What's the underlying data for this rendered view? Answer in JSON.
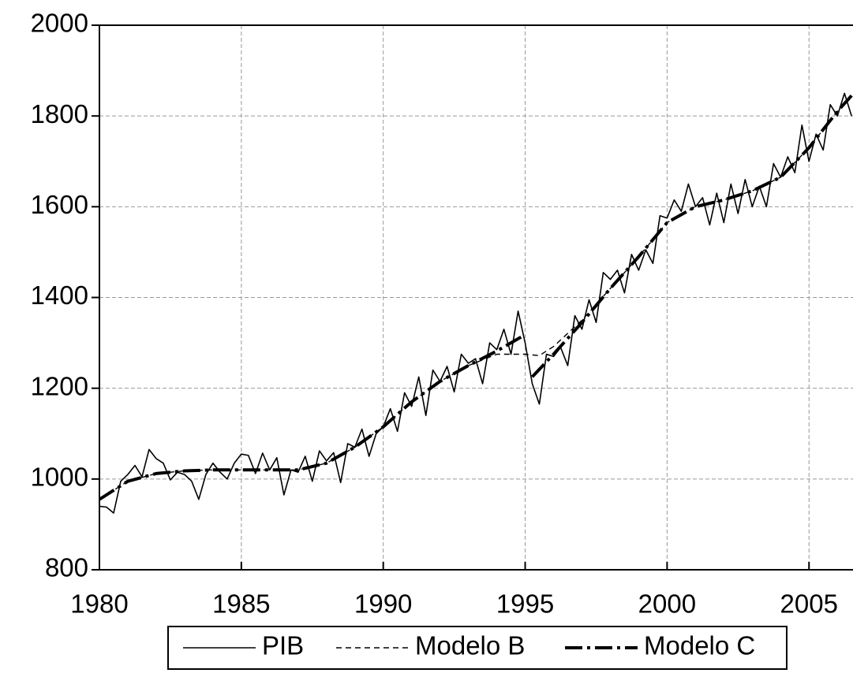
{
  "chart_data": {
    "type": "line",
    "xlim": [
      1980,
      2006.55
    ],
    "xticks": [
      1980,
      1985,
      1990,
      1995,
      2000,
      2005
    ],
    "ylim": [
      800,
      2000
    ],
    "yticks": [
      800,
      1000,
      1200,
      1400,
      1600,
      1800,
      2000
    ],
    "grid": true,
    "legend": "bottom",
    "series": [
      {
        "name": "PIB",
        "color": "#000000",
        "width": 1.6,
        "dash": "none",
        "x": [
          1980,
          1980.25,
          1980.5,
          1980.75,
          1981,
          1981.25,
          1981.5,
          1981.75,
          1982,
          1982.25,
          1982.5,
          1982.75,
          1983,
          1983.25,
          1983.5,
          1983.75,
          1984,
          1984.25,
          1984.5,
          1984.75,
          1985,
          1985.25,
          1985.5,
          1985.75,
          1986,
          1986.25,
          1986.5,
          1986.75,
          1987,
          1987.25,
          1987.5,
          1987.75,
          1988,
          1988.25,
          1988.5,
          1988.75,
          1989,
          1989.25,
          1989.5,
          1989.75,
          1990,
          1990.25,
          1990.5,
          1990.75,
          1991,
          1991.25,
          1991.5,
          1991.75,
          1992,
          1992.25,
          1992.5,
          1992.75,
          1993,
          1993.25,
          1993.5,
          1993.75,
          1994,
          1994.25,
          1994.5,
          1994.75,
          1995,
          1995.25,
          1995.5,
          1995.75,
          1996,
          1996.25,
          1996.5,
          1996.75,
          1997,
          1997.25,
          1997.5,
          1997.75,
          1998,
          1998.25,
          1998.5,
          1998.75,
          1999,
          1999.25,
          1999.5,
          1999.75,
          2000,
          2000.25,
          2000.5,
          2000.75,
          2001,
          2001.25,
          2001.5,
          2001.75,
          2002,
          2002.25,
          2002.5,
          2002.75,
          2003,
          2003.25,
          2003.5,
          2003.75,
          2004,
          2004.25,
          2004.5,
          2004.75,
          2005,
          2005.25,
          2005.5,
          2005.75,
          2006,
          2006.25,
          2006.5
        ],
        "values": [
          940,
          938,
          925,
          995,
          1010,
          1030,
          1005,
          1065,
          1045,
          1035,
          998,
          1015,
          1010,
          995,
          955,
          1010,
          1035,
          1015,
          1000,
          1035,
          1055,
          1052,
          1012,
          1057,
          1020,
          1047,
          965,
          1020,
          1015,
          1050,
          995,
          1062,
          1040,
          1058,
          992,
          1078,
          1070,
          1110,
          1050,
          1100,
          1115,
          1155,
          1105,
          1190,
          1160,
          1225,
          1140,
          1240,
          1215,
          1248,
          1192,
          1275,
          1255,
          1265,
          1210,
          1300,
          1285,
          1330,
          1275,
          1370,
          1300,
          1210,
          1165,
          1275,
          1270,
          1290,
          1250,
          1360,
          1330,
          1395,
          1345,
          1455,
          1440,
          1460,
          1410,
          1495,
          1460,
          1505,
          1475,
          1580,
          1575,
          1615,
          1590,
          1650,
          1600,
          1620,
          1560,
          1630,
          1565,
          1650,
          1585,
          1660,
          1600,
          1645,
          1600,
          1695,
          1665,
          1710,
          1675,
          1780,
          1700,
          1760,
          1725,
          1825,
          1800,
          1850,
          1800
        ]
      },
      {
        "name": "Modelo B",
        "color": "#000000",
        "width": 1.4,
        "dash": "7,5",
        "x": [
          1980,
          1981,
          1982,
          1983,
          1984,
          1985,
          1986,
          1987,
          1988,
          1989,
          1990,
          1991,
          1992,
          1993,
          1994,
          1995,
          1995.5,
          1996,
          1997,
          1998,
          1999,
          2000,
          2001,
          2002,
          2003,
          2004,
          2005,
          2006,
          2006.5
        ],
        "values": [
          955,
          995,
          1012,
          1018,
          1020,
          1020,
          1020,
          1020,
          1035,
          1070,
          1115,
          1170,
          1215,
          1250,
          1275,
          1275,
          1272,
          1292,
          1350,
          1420,
          1490,
          1565,
          1600,
          1615,
          1635,
          1665,
          1730,
          1810,
          1845
        ]
      },
      {
        "name": "Modelo C",
        "color": "#000000",
        "width": 4,
        "dash": "22,6,4,6",
        "x": [
          1980,
          1981,
          1982,
          1983,
          1984,
          1985,
          1986,
          1987,
          1988,
          1989,
          1990,
          1991,
          1992,
          1993,
          1994,
          1995,
          1995.1,
          1995.25,
          1996,
          1997,
          1998,
          1999,
          2000,
          2001,
          2002,
          2003,
          2004,
          2005,
          2006,
          2006.5
        ],
        "values": [
          955,
          995,
          1012,
          1018,
          1020,
          1020,
          1020,
          1020,
          1035,
          1070,
          1115,
          1170,
          1215,
          1250,
          1282,
          1318,
          null,
          1225,
          1275,
          1345,
          1420,
          1490,
          1565,
          1600,
          1615,
          1635,
          1665,
          1730,
          1810,
          1845
        ]
      }
    ]
  }
}
